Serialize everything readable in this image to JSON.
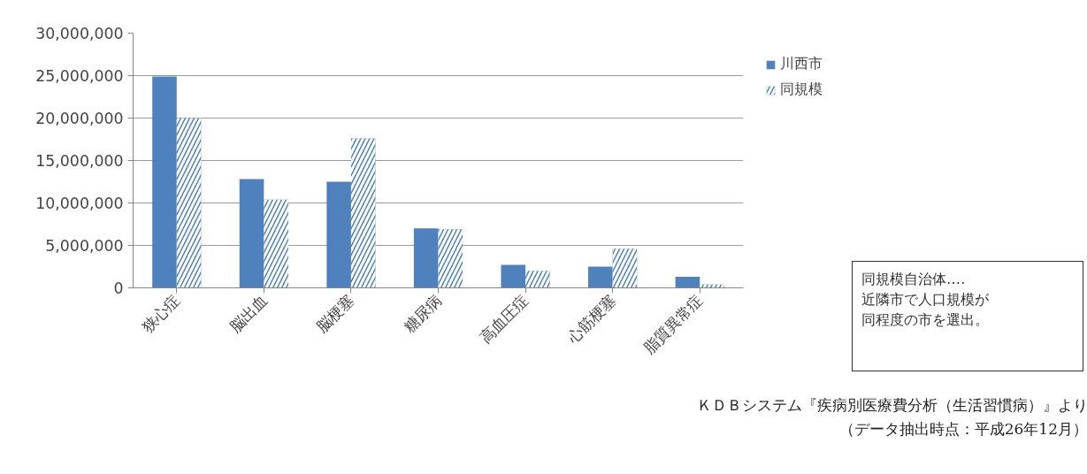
{
  "chart_data": {
    "type": "bar",
    "categories": [
      "狭心症",
      "脳出血",
      "脳梗塞",
      "糖尿病",
      "高血圧症",
      "心筋梗塞",
      "脂質異常症"
    ],
    "series": [
      {
        "name": "川西市",
        "color": "#4f81bd",
        "values": [
          24900000,
          12800000,
          12500000,
          7000000,
          2700000,
          2500000,
          1300000
        ]
      },
      {
        "name": "同規模",
        "color": "#4f81bd",
        "values": [
          20000000,
          10400000,
          17600000,
          6900000,
          2000000,
          4600000,
          400000
        ]
      }
    ],
    "ylim": [
      0,
      30000000
    ],
    "yticks": [
      {
        "value": 0,
        "label": "0"
      },
      {
        "value": 5000000,
        "label": "5,000,000"
      },
      {
        "value": 10000000,
        "label": "10,000,000"
      },
      {
        "value": 15000000,
        "label": "15,000,000"
      },
      {
        "value": 20000000,
        "label": "20,000,000"
      },
      {
        "value": 25000000,
        "label": "25,000,000"
      },
      {
        "value": 30000000,
        "label": "30,000,000"
      }
    ],
    "grid": "y",
    "legend": "right",
    "annotations": [
      "同規模自治体‥‥",
      "近隣市で人口規模が",
      "同程度の市を選出。",
      "ＫＤＢシステム『疾病別医療費分析（生活習慣病）』より",
      "（データ抽出時点：平成26年12月）"
    ]
  }
}
